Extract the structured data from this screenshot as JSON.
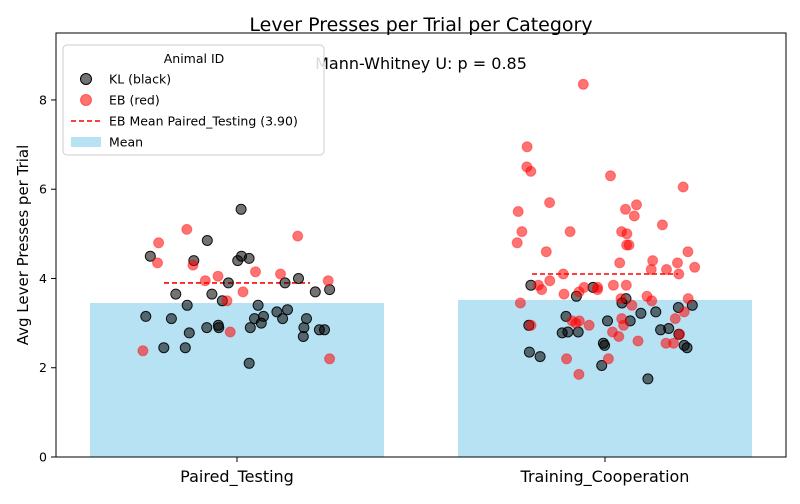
{
  "chart_data": {
    "type": "bar",
    "title": "Lever Presses per Trial per Category",
    "annotation": "Mann-Whitney U: p = 0.85",
    "xlabel": "",
    "ylabel": "Avg Lever Presses per Trial",
    "ylim": [
      0,
      9.5
    ],
    "yticks": [
      "0",
      "2",
      "4",
      "6",
      "8"
    ],
    "categories": [
      "Paired_Testing",
      "Training_Cooperation"
    ],
    "grid": false,
    "legend": {
      "title": "Animal ID",
      "placement": "top-left",
      "entries": [
        "KL (black)",
        "EB (red)",
        "EB Mean Paired_Testing (3.90)",
        "Mean"
      ]
    },
    "colors": {
      "bar": "#87CEEB",
      "kl": "#000000",
      "eb": "#FF0000",
      "mean_line": "#FF0000"
    },
    "series": [
      {
        "name": "Mean",
        "kind": "bar",
        "values": [
          3.45,
          3.52
        ]
      },
      {
        "name": "EB Mean Paired_Testing (3.90)",
        "kind": "mean_line",
        "values": [
          3.9,
          4.1
        ]
      },
      {
        "name": "KL (black)",
        "kind": "scatter",
        "points": [
          {
            "category": "Paired_Testing",
            "values": [
              3.1,
              2.1,
              3.9,
              4.4,
              4.0,
              3.9,
              4.4,
              4.5,
              5.55,
              3.15,
              3.1,
              3.4,
              2.95,
              2.7,
              2.9,
              3.5,
              3.4,
              3.75,
              3.25,
              3.1,
              2.9,
              4.5,
              3.0,
              2.85,
              2.45,
              3.3,
              3.1,
              3.7,
              3.65,
              4.85,
              4.45,
              3.65,
              2.9,
              2.9,
              2.45,
              3.15,
              2.85,
              2.78
            ]
          },
          {
            "category": "Training_Cooperation",
            "values": [
              2.78,
              3.25,
              2.88,
              3.05,
              2.35,
              2.5,
              2.85,
              1.75,
              3.85,
              3.8,
              3.4,
              3.35,
              2.05,
              2.8,
              2.55,
              2.95,
              2.75,
              2.8,
              3.6,
              3.55,
              3.45,
              3.05,
              3.15,
              2.5,
              2.45,
              2.25,
              3.22
            ]
          }
        ]
      },
      {
        "name": "EB (red)",
        "kind": "scatter",
        "points": [
          {
            "category": "Paired_Testing",
            "values": [
              4.35,
              2.2,
              3.7,
              4.05,
              4.15,
              3.5,
              2.8,
              2.38,
              4.1,
              3.95,
              5.1,
              4.95,
              3.95,
              4.3,
              4.8
            ]
          },
          {
            "category": "Training_Cooperation",
            "values": [
              6.3,
              8.35,
              2.6,
              4.4,
              5.0,
              5.55,
              3.85,
              3.75,
              4.35,
              4.6,
              3.65,
              6.05,
              3.85,
              5.4,
              4.2,
              3.7,
              2.55,
              3.8,
              4.1,
              3.55,
              5.05,
              1.85,
              2.55,
              3.95,
              4.1,
              3.4,
              3.5,
              6.95,
              5.65,
              3.25,
              2.7,
              2.8,
              4.75,
              4.75,
              3.55,
              2.75,
              3.45,
              5.2,
              4.35,
              3.05,
              3.75,
              4.25,
              3.1,
              3.6,
              2.95,
              4.2,
              5.05,
              5.05,
              5.7,
              6.4,
              3.8,
              3.1,
              2.95,
              2.2,
              4.8,
              5.5,
              3.85,
              2.2,
              3.05,
              3.0,
              6.5,
              2.95,
              4.6
            ]
          }
        ]
      }
    ]
  }
}
